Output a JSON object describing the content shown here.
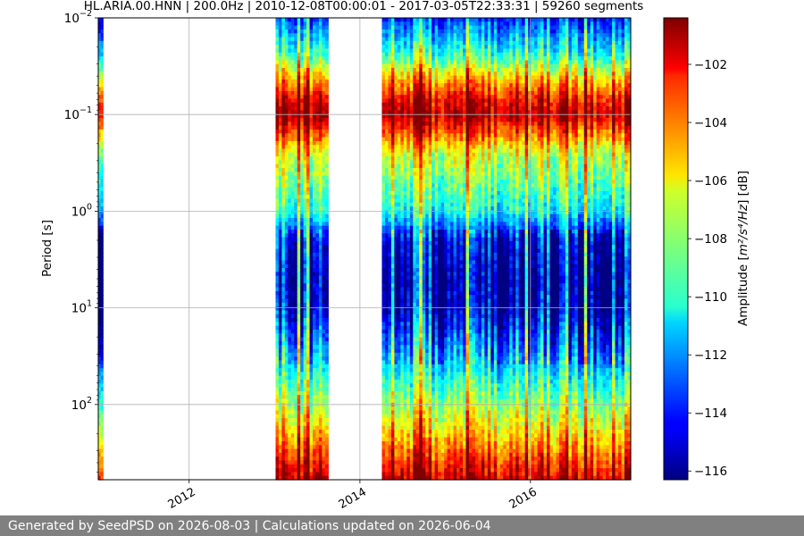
{
  "chart_data": {
    "type": "heatmap",
    "title": "HL.ARIA.00.HNN | 200.0Hz | 2010-12-08T00:00:01 - 2017-03-05T22:33:31 | 59260 segments",
    "xlabel": "",
    "ylabel": "Period [s]",
    "x_range": [
      "2010-12-08",
      "2017-03-05"
    ],
    "x_ticks": [
      {
        "value": "2012-01-01",
        "label": "2012"
      },
      {
        "value": "2014-01-01",
        "label": "2014"
      },
      {
        "value": "2016-01-01",
        "label": "2016"
      }
    ],
    "y_scale": "log",
    "y_range_seconds": [
      0.01,
      600
    ],
    "y_ticks": [
      {
        "value": 0.01,
        "base": "10",
        "exp": "−2"
      },
      {
        "value": 0.1,
        "base": "10",
        "exp": "−1"
      },
      {
        "value": 1,
        "base": "10",
        "exp": "0"
      },
      {
        "value": 10,
        "base": "10",
        "exp": "1"
      },
      {
        "value": 100,
        "base": "10",
        "exp": "2"
      }
    ],
    "grid": true,
    "colormap": "jet",
    "colorbar": {
      "label_prefix": "Amplitude [",
      "label_unit": "m²/s⁴/Hz",
      "label_suffix": "] [dB]",
      "range_db": [
        -116.3,
        -100.4
      ],
      "ticks": [
        {
          "value": -102,
          "label": "−102"
        },
        {
          "value": -104,
          "label": "−104"
        },
        {
          "value": -106,
          "label": "−106"
        },
        {
          "value": -108,
          "label": "−108"
        },
        {
          "value": -110,
          "label": "−110"
        },
        {
          "value": -112,
          "label": "−112"
        },
        {
          "value": -114,
          "label": "−114"
        },
        {
          "value": -116,
          "label": "−116"
        }
      ]
    },
    "data_segments": [
      {
        "start": "2010-12-08",
        "end": "2010-12-28"
      },
      {
        "start": "2013-01-05",
        "end": "2013-08-18"
      },
      {
        "start": "2014-04-05",
        "end": "2017-03-05"
      }
    ]
  },
  "footer": {
    "text": "Generated by SeedPSD on 2026-08-03 | Calculations updated on 2026-06-04"
  }
}
